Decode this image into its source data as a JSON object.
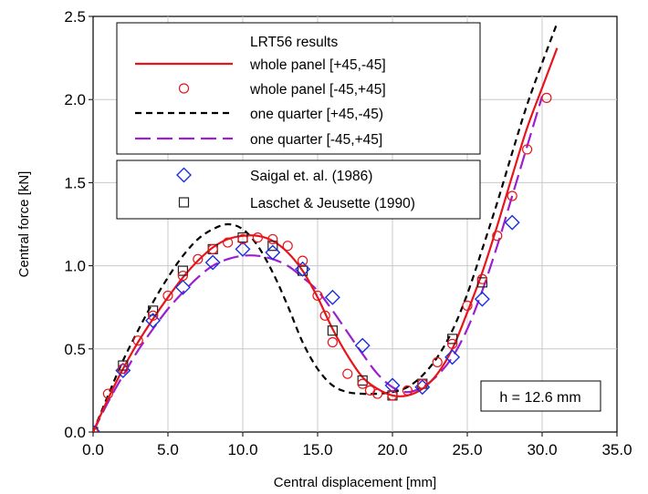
{
  "chart_data": {
    "type": "line",
    "xlabel": "Central displacement [mm]",
    "ylabel": "Central force [kN]",
    "xlim": [
      0,
      35
    ],
    "ylim": [
      0,
      2.5
    ],
    "x_ticks": [
      "0.0",
      "5.0",
      "10.0",
      "15.0",
      "20.0",
      "25.0",
      "30.0",
      "35.0"
    ],
    "y_ticks": [
      "0.0",
      "0.5",
      "1.0",
      "1.5",
      "2.0",
      "2.5"
    ],
    "grid": true,
    "legend_position": "top-left",
    "legend_group_title": "LRT56 results",
    "annotation": "h = 12.6 mm",
    "series": [
      {
        "name": "whole panel [+45,-45]",
        "style": "solid-line",
        "color": "#e8141c",
        "x": [
          0,
          1,
          2,
          3,
          4,
          5,
          6,
          7,
          8,
          9,
          10,
          11,
          12,
          13,
          14,
          15,
          16,
          17,
          18,
          19,
          20,
          21,
          22,
          23,
          24,
          25,
          26,
          27,
          28,
          29,
          30,
          31
        ],
        "y": [
          0,
          0.2,
          0.38,
          0.54,
          0.68,
          0.81,
          0.93,
          1.03,
          1.11,
          1.16,
          1.18,
          1.18,
          1.15,
          1.08,
          0.97,
          0.81,
          0.62,
          0.46,
          0.33,
          0.26,
          0.22,
          0.22,
          0.26,
          0.35,
          0.5,
          0.72,
          0.96,
          1.24,
          1.54,
          1.83,
          2.07,
          2.31
        ]
      },
      {
        "name": "whole panel [-45,+45]",
        "style": "circle-marker",
        "color": "#e8141c",
        "x": [
          0,
          1,
          2,
          3,
          4,
          5,
          6,
          7,
          8,
          9,
          10,
          11,
          12,
          13,
          14,
          15,
          15.5,
          16,
          17,
          18,
          18.5,
          19,
          20,
          21,
          22,
          23,
          24,
          25,
          26,
          27,
          28,
          29,
          30.3
        ],
        "y": [
          0,
          0.23,
          0.38,
          0.55,
          0.7,
          0.82,
          0.94,
          1.04,
          1.1,
          1.14,
          1.16,
          1.17,
          1.16,
          1.12,
          1.03,
          0.82,
          0.7,
          0.54,
          0.35,
          0.29,
          0.25,
          0.23,
          0.22,
          0.25,
          0.29,
          0.42,
          0.53,
          0.76,
          0.92,
          1.18,
          1.42,
          1.7,
          2.01
        ]
      },
      {
        "name": "one quarter [+45,-45)",
        "style": "short-dash-line",
        "color": "#000000",
        "x": [
          0,
          1,
          2,
          3,
          4,
          5,
          6,
          7,
          8,
          9,
          10,
          11,
          12,
          13,
          14,
          15,
          16,
          17,
          18,
          19,
          20,
          21,
          22,
          23,
          24,
          25,
          26,
          27,
          28,
          29,
          30,
          31
        ],
        "y": [
          0,
          0.22,
          0.43,
          0.61,
          0.78,
          0.93,
          1.06,
          1.16,
          1.22,
          1.25,
          1.22,
          1.12,
          0.96,
          0.76,
          0.54,
          0.38,
          0.28,
          0.24,
          0.23,
          0.23,
          0.24,
          0.27,
          0.34,
          0.45,
          0.61,
          0.83,
          1.1,
          1.38,
          1.68,
          1.97,
          2.22,
          2.46
        ]
      },
      {
        "name": "one quarter [-45,+45]",
        "style": "long-dash-line",
        "color": "#9b1fd0",
        "x": [
          0,
          1,
          2,
          3,
          4,
          5,
          6,
          7,
          8,
          9,
          10,
          11,
          12,
          13,
          14,
          15,
          16,
          17,
          18,
          19,
          20,
          21,
          22,
          23,
          24,
          25,
          26,
          27,
          28,
          29,
          30
        ],
        "y": [
          0,
          0.18,
          0.34,
          0.49,
          0.62,
          0.74,
          0.84,
          0.93,
          1.0,
          1.04,
          1.06,
          1.06,
          1.04,
          1.0,
          0.93,
          0.85,
          0.73,
          0.6,
          0.47,
          0.35,
          0.27,
          0.24,
          0.27,
          0.34,
          0.45,
          0.62,
          0.85,
          1.12,
          1.42,
          1.72,
          2.02
        ]
      },
      {
        "name": "Saigal et. al. (1986)",
        "style": "diamond-marker",
        "color": "#1a2fe0",
        "x": [
          0,
          2,
          4,
          6,
          8,
          10,
          12,
          14,
          16,
          18,
          20,
          22,
          24,
          26,
          28
        ],
        "y": [
          0,
          0.37,
          0.67,
          0.87,
          1.02,
          1.1,
          1.08,
          0.98,
          0.81,
          0.52,
          0.28,
          0.27,
          0.45,
          0.8,
          1.26
        ]
      },
      {
        "name": "Laschet & Jeusette (1990)",
        "style": "square-marker",
        "color": "#222222",
        "x": [
          0,
          2,
          4,
          6,
          8,
          10,
          12,
          14,
          16,
          18,
          20,
          22,
          24,
          26
        ],
        "y": [
          0,
          0.4,
          0.73,
          0.97,
          1.1,
          1.17,
          1.12,
          0.97,
          0.61,
          0.31,
          0.22,
          0.29,
          0.56,
          0.9
        ]
      }
    ]
  }
}
